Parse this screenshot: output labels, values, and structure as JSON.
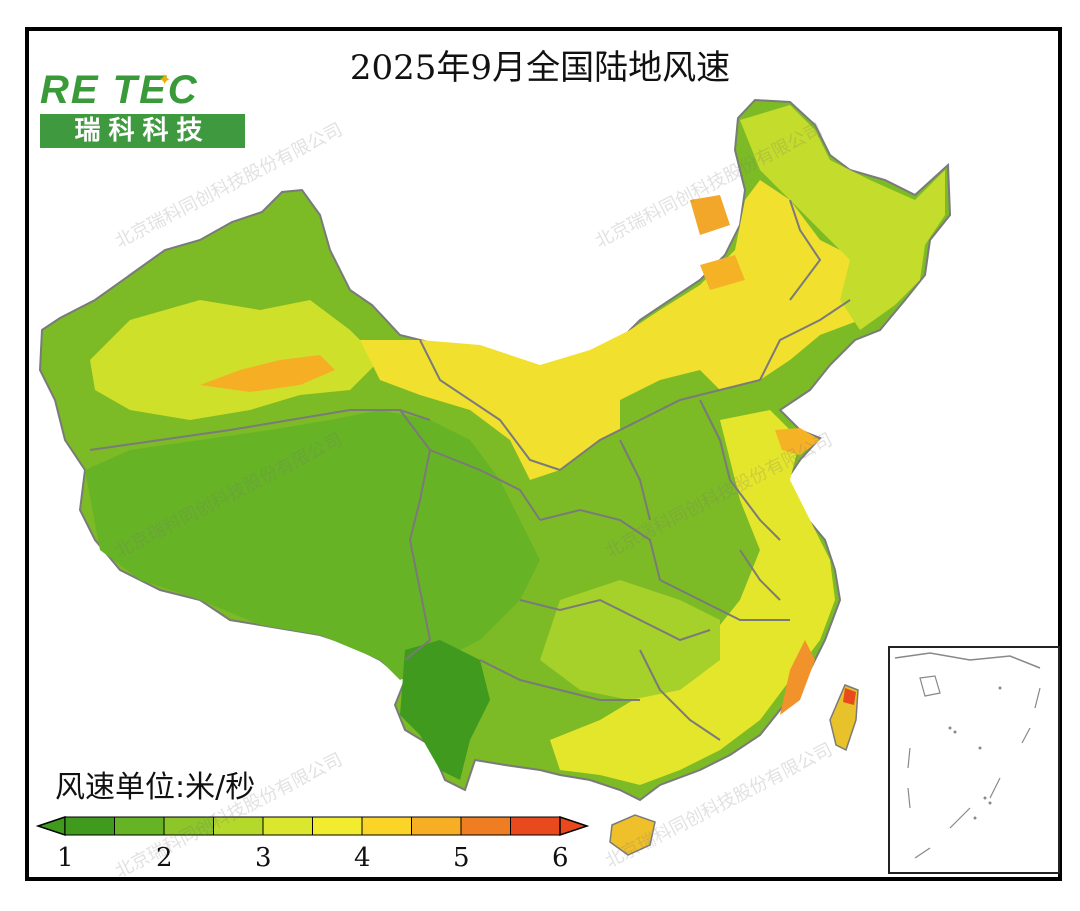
{
  "title": "2025年9月全国陆地风速",
  "logo": {
    "brand": "RE TEC",
    "cn": "瑞科科技"
  },
  "watermark": "北京瑞科同创科技股份有限公司",
  "legend": {
    "unit_label": "风速单位:米/秒",
    "ticks": [
      "1",
      "2",
      "3",
      "4",
      "5",
      "6"
    ],
    "colors": [
      "#3f9a1e",
      "#66b326",
      "#8cc628",
      "#b5d92a",
      "#dbe72c",
      "#f2ec2e",
      "#fad427",
      "#f6ae25",
      "#ef7e22",
      "#e84a1d"
    ]
  }
}
